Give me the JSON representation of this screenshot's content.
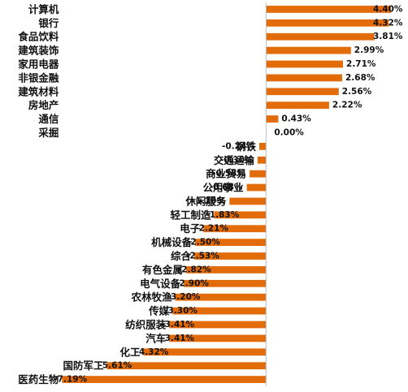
{
  "colors": {
    "bar": "#E36C0A",
    "axis": "#BFBFBF",
    "text": "#111111"
  },
  "chart_data": {
    "type": "bar",
    "orientation": "horizontal",
    "title": "",
    "xlabel": "",
    "ylabel": "",
    "grid": false,
    "legend": "none",
    "xlim": [
      -7.6,
      4.8
    ],
    "categories": [
      "计算机",
      "银行",
      "食品饮料",
      "建筑装饰",
      "家用电器",
      "非银金融",
      "建筑材料",
      "房地产",
      "通信",
      "采掘",
      "钢铁",
      "交通运输",
      "商业贸易",
      "公用事业",
      "休闲服务",
      "轻工制造",
      "电子",
      "机械设备",
      "综合",
      "有色金属",
      "电气设备",
      "农林牧渔",
      "传媒",
      "纺织服装",
      "汽车",
      "化工",
      "国防军工",
      "医药生物"
    ],
    "values": [
      4.4,
      4.32,
      3.81,
      2.99,
      2.71,
      2.68,
      2.56,
      2.22,
      0.43,
      0.0,
      -0.24,
      -0.3,
      -0.58,
      -0.68,
      -1.29,
      -1.83,
      -2.21,
      -2.5,
      -2.53,
      -2.82,
      -2.9,
      -3.2,
      -3.3,
      -3.41,
      -3.41,
      -4.32,
      -5.61,
      -7.19
    ],
    "value_labels": [
      "4.40%",
      "4.32%",
      "3.81%",
      "2.99%",
      "2.71%",
      "2.68%",
      "2.56%",
      "2.22%",
      "0.43%",
      "0.00%",
      "-0.24%",
      "-0.30%",
      "-0.58%",
      "-0.68%",
      "-1.29%",
      "-1.83%",
      "-2.21%",
      "-2.50%",
      "-2.53%",
      "-2.82%",
      "-2.90%",
      "-3.20%",
      "-3.30%",
      "-3.41%",
      "-3.41%",
      "-4.32%",
      "-5.61%",
      "-7.19%"
    ]
  }
}
